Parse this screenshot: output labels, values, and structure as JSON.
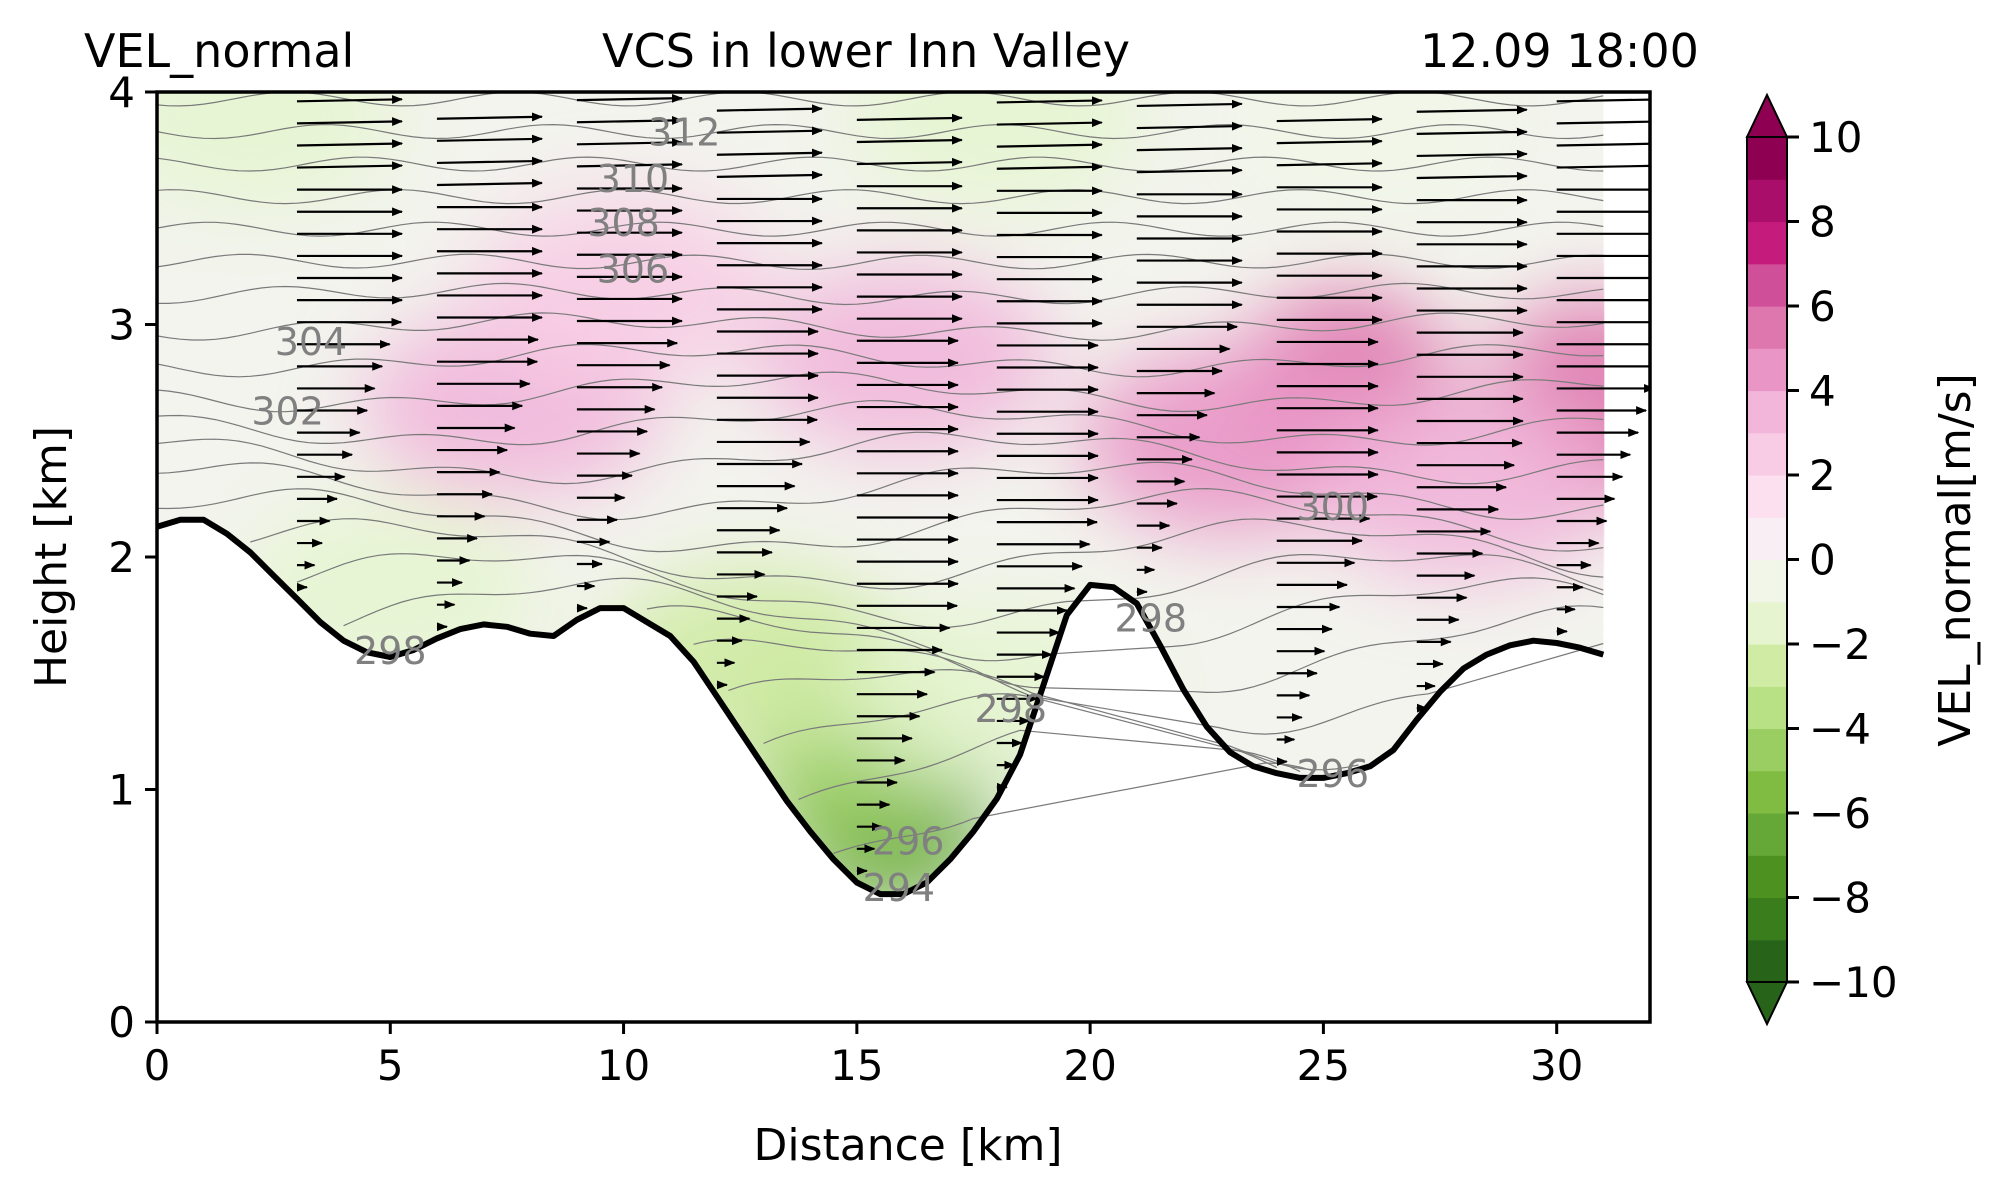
{
  "header": {
    "left": "VEL_normal",
    "center": "VCS in lower Inn Valley",
    "right": "12.09 18:00"
  },
  "chart_data": {
    "type": "contour",
    "xlabel": "Distance [km]",
    "ylabel": "Height [km]",
    "xlim": [
      0,
      32
    ],
    "ylim": [
      0,
      4
    ],
    "xticks": [
      0,
      5,
      10,
      15,
      20,
      25,
      30
    ],
    "yticks": [
      0,
      1,
      2,
      3,
      4
    ],
    "colorbar": {
      "label": "VEL_normal[m/s]",
      "range": [
        -10,
        10
      ],
      "ticks": [
        10,
        8,
        6,
        4,
        2,
        0,
        -2,
        -4,
        -6,
        -8,
        -10
      ],
      "tick_labels": [
        "10",
        "8",
        "6",
        "4",
        "2",
        "0",
        "−2",
        "−4",
        "−6",
        "−8",
        "−10"
      ],
      "colors": [
        "#276419",
        "#397d1c",
        "#4d9221",
        "#65a838",
        "#7fbc41",
        "#9ace62",
        "#b8e186",
        "#cfeba4",
        "#e6f5d0",
        "#f1f6e8",
        "#f9eef4",
        "#fde0ef",
        "#f7cce4",
        "#f1b6da",
        "#e996c7",
        "#de77ae",
        "#d04f99",
        "#c51b7d",
        "#a90f6a",
        "#8e0152"
      ]
    },
    "terrain": {
      "x": [
        0,
        0.5,
        1,
        1.5,
        2,
        2.5,
        3,
        3.5,
        4,
        4.5,
        5,
        5.5,
        6,
        6.5,
        7,
        7.5,
        8,
        8.5,
        9,
        9.5,
        10,
        10.5,
        11,
        11.5,
        12,
        12.5,
        13,
        13.5,
        14,
        14.5,
        15,
        15.5,
        16,
        16.5,
        17,
        17.5,
        18,
        18.5,
        19,
        19.5,
        20,
        20.5,
        21,
        21.5,
        22,
        22.5,
        23,
        23.5,
        24,
        24.5,
        25,
        25.5,
        26,
        26.5,
        27,
        27.5,
        28,
        28.5,
        29,
        29.5,
        30,
        30.5,
        31
      ],
      "height": [
        2.13,
        2.16,
        2.16,
        2.1,
        2.02,
        1.92,
        1.82,
        1.72,
        1.64,
        1.59,
        1.57,
        1.6,
        1.65,
        1.69,
        1.71,
        1.7,
        1.67,
        1.66,
        1.73,
        1.78,
        1.78,
        1.72,
        1.66,
        1.55,
        1.4,
        1.25,
        1.1,
        0.95,
        0.82,
        0.7,
        0.6,
        0.55,
        0.55,
        0.6,
        0.7,
        0.82,
        0.96,
        1.15,
        1.45,
        1.75,
        1.88,
        1.87,
        1.8,
        1.62,
        1.43,
        1.27,
        1.16,
        1.1,
        1.07,
        1.05,
        1.05,
        1.07,
        1.1,
        1.17,
        1.3,
        1.42,
        1.52,
        1.58,
        1.62,
        1.64,
        1.63,
        1.61,
        1.58
      ]
    },
    "velocity_blobs": [
      {
        "x": 15.7,
        "height": 0.95,
        "value": -6.5
      },
      {
        "x": 14.8,
        "height": 1.25,
        "value": -4.5
      },
      {
        "x": 12.8,
        "height": 1.55,
        "value": -2.5
      },
      {
        "x": 18.0,
        "height": 1.4,
        "value": -2.0
      },
      {
        "x": 5.0,
        "height": 1.85,
        "value": -1.2
      },
      {
        "x": 2.0,
        "height": 3.9,
        "value": -2.0
      },
      {
        "x": 18.0,
        "height": 3.9,
        "value": -1.5
      },
      {
        "x": 26.0,
        "height": 3.85,
        "value": -1.0
      },
      {
        "x": 7.6,
        "height": 2.65,
        "value": 3.0
      },
      {
        "x": 16.0,
        "height": 2.85,
        "value": 3.0
      },
      {
        "x": 25.5,
        "height": 2.7,
        "value": 5.0
      },
      {
        "x": 30.8,
        "height": 2.65,
        "value": 5.5
      },
      {
        "x": 23.0,
        "height": 2.5,
        "value": 4.0
      },
      {
        "x": 28.0,
        "height": 2.3,
        "value": 3.0
      },
      {
        "x": 10.0,
        "height": 3.15,
        "value": 2.0
      }
    ],
    "isentrope_labels": [
      {
        "text": "312",
        "x": 11.3,
        "height": 3.83
      },
      {
        "text": "310",
        "x": 10.2,
        "height": 3.63
      },
      {
        "text": "308",
        "x": 10.0,
        "height": 3.44
      },
      {
        "text": "306",
        "x": 10.2,
        "height": 3.24
      },
      {
        "text": "304",
        "x": 3.3,
        "height": 2.93
      },
      {
        "text": "302",
        "x": 2.8,
        "height": 2.63
      },
      {
        "text": "300",
        "x": 25.2,
        "height": 2.22
      },
      {
        "text": "298",
        "x": 5.0,
        "height": 1.6
      },
      {
        "text": "298",
        "x": 18.3,
        "height": 1.35
      },
      {
        "text": "298",
        "x": 21.3,
        "height": 1.74
      },
      {
        "text": "296",
        "x": 16.1,
        "height": 0.78
      },
      {
        "text": "296",
        "x": 25.2,
        "height": 1.07
      },
      {
        "text": "294",
        "x": 15.9,
        "height": 0.58
      }
    ],
    "wind_columns": [
      3,
      6,
      9,
      12,
      15,
      18,
      21,
      24,
      27,
      30
    ]
  }
}
